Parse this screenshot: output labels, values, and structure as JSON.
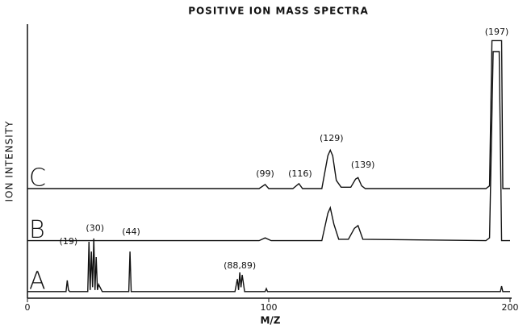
{
  "chart_data": {
    "type": "line",
    "title": "POSITIVE ION MASS SPECTRA",
    "x_label": "M/Z",
    "y_label": "ION INTENSITY",
    "xlim": [
      0,
      200
    ],
    "xticks": [
      0,
      100,
      200
    ],
    "ylim": [
      0,
      100
    ],
    "color": "#111111",
    "series": [
      {
        "name": "C",
        "x": [
          0,
          96,
          98.5,
          100,
          110,
          112.5,
          114,
          122,
          124.5,
          125.5,
          126.5,
          128,
          130,
          134,
          136,
          137,
          138.5,
          140,
          190,
          191.5,
          192.5,
          196.5,
          197,
          200
        ],
        "values": [
          40,
          40,
          41.5,
          40,
          40,
          41.8,
          40,
          40,
          52,
          54,
          52,
          43,
          40.5,
          40.5,
          43.5,
          44,
          41,
          40,
          40,
          41,
          94,
          94,
          40,
          40
        ]
      },
      {
        "name": "B",
        "x": [
          0,
          96,
          98.5,
          101,
          122,
          124.5,
          125.5,
          127,
          129,
          133,
          135.5,
          137,
          139,
          190,
          191.5,
          193,
          195.5,
          196.5,
          200
        ],
        "values": [
          21,
          21,
          22,
          21,
          21,
          31,
          33,
          27,
          21.5,
          21.5,
          25.5,
          26.5,
          21.5,
          21,
          22,
          90,
          90,
          21,
          21
        ]
      },
      {
        "name": "A",
        "x": [
          0,
          16,
          16.5,
          17,
          17.5,
          25,
          25.5,
          26,
          26.5,
          27,
          27.5,
          28,
          28.5,
          29,
          29.5,
          31,
          42,
          42.5,
          43,
          86,
          87,
          87.5,
          88,
          88.5,
          89,
          90,
          98.5,
          99,
          99.5,
          196,
          196.5,
          197,
          200
        ],
        "values": [
          2.4,
          2.4,
          6.5,
          3,
          2.4,
          2.4,
          20.6,
          3,
          17,
          4,
          21.8,
          3,
          15,
          3,
          5,
          2.4,
          2.4,
          17,
          2.4,
          2.4,
          7,
          3,
          9.4,
          4,
          8.5,
          2.4,
          2.4,
          3.5,
          2.4,
          2.4,
          4.4,
          2.4,
          2.4
        ]
      }
    ],
    "annotations": [
      {
        "text": "(19)",
        "x": 17,
        "y": 20.6
      },
      {
        "text": "(30)",
        "x": 28,
        "y": 25.5
      },
      {
        "text": "(44)",
        "x": 43,
        "y": 24.1
      },
      {
        "text": "(88,89)",
        "x": 88,
        "y": 11.8
      },
      {
        "text": "(99)",
        "x": 98.5,
        "y": 45.3
      },
      {
        "text": "(116)",
        "x": 113,
        "y": 45.3
      },
      {
        "text": "(129)",
        "x": 126,
        "y": 58.2
      },
      {
        "text": "(139)",
        "x": 139,
        "y": 48.5
      },
      {
        "text": "(197)",
        "x": 194.5,
        "y": 97
      }
    ]
  }
}
